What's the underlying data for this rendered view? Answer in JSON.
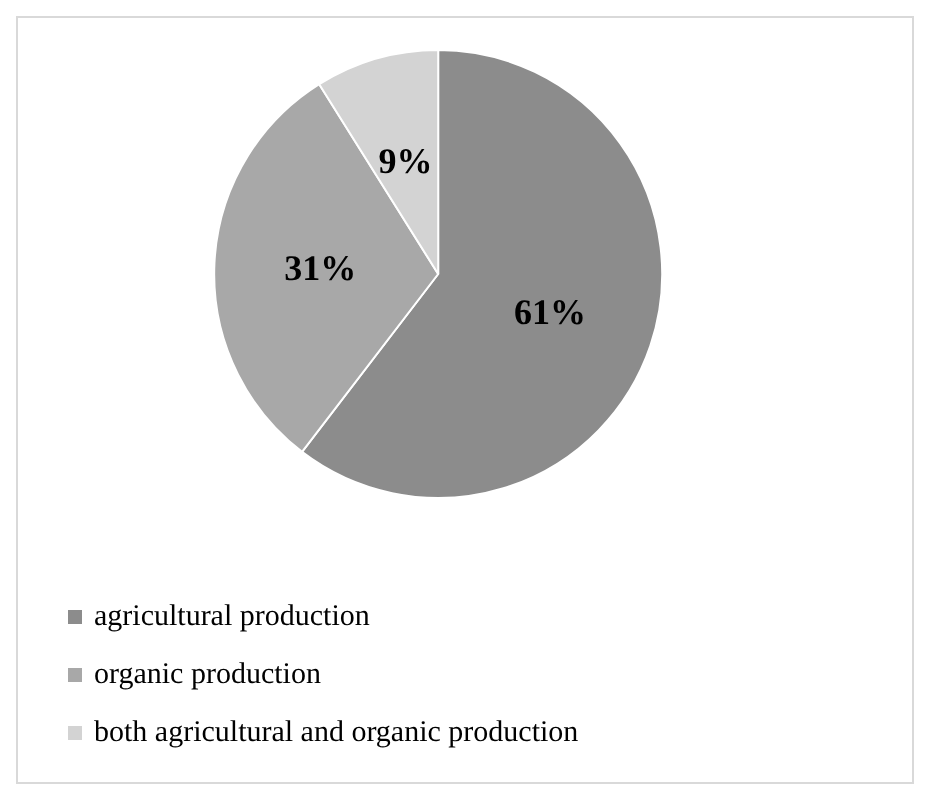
{
  "chart_data": {
    "type": "pie",
    "categories": [
      "agricultural production",
      "organic production",
      "both agricultural and organic production"
    ],
    "values": [
      61,
      31,
      9
    ],
    "colors": [
      "#8c8c8c",
      "#a8a8a8",
      "#d3d3d3"
    ],
    "value_labels": [
      "61%",
      "31%",
      "9%"
    ],
    "legend": "bottom left"
  }
}
